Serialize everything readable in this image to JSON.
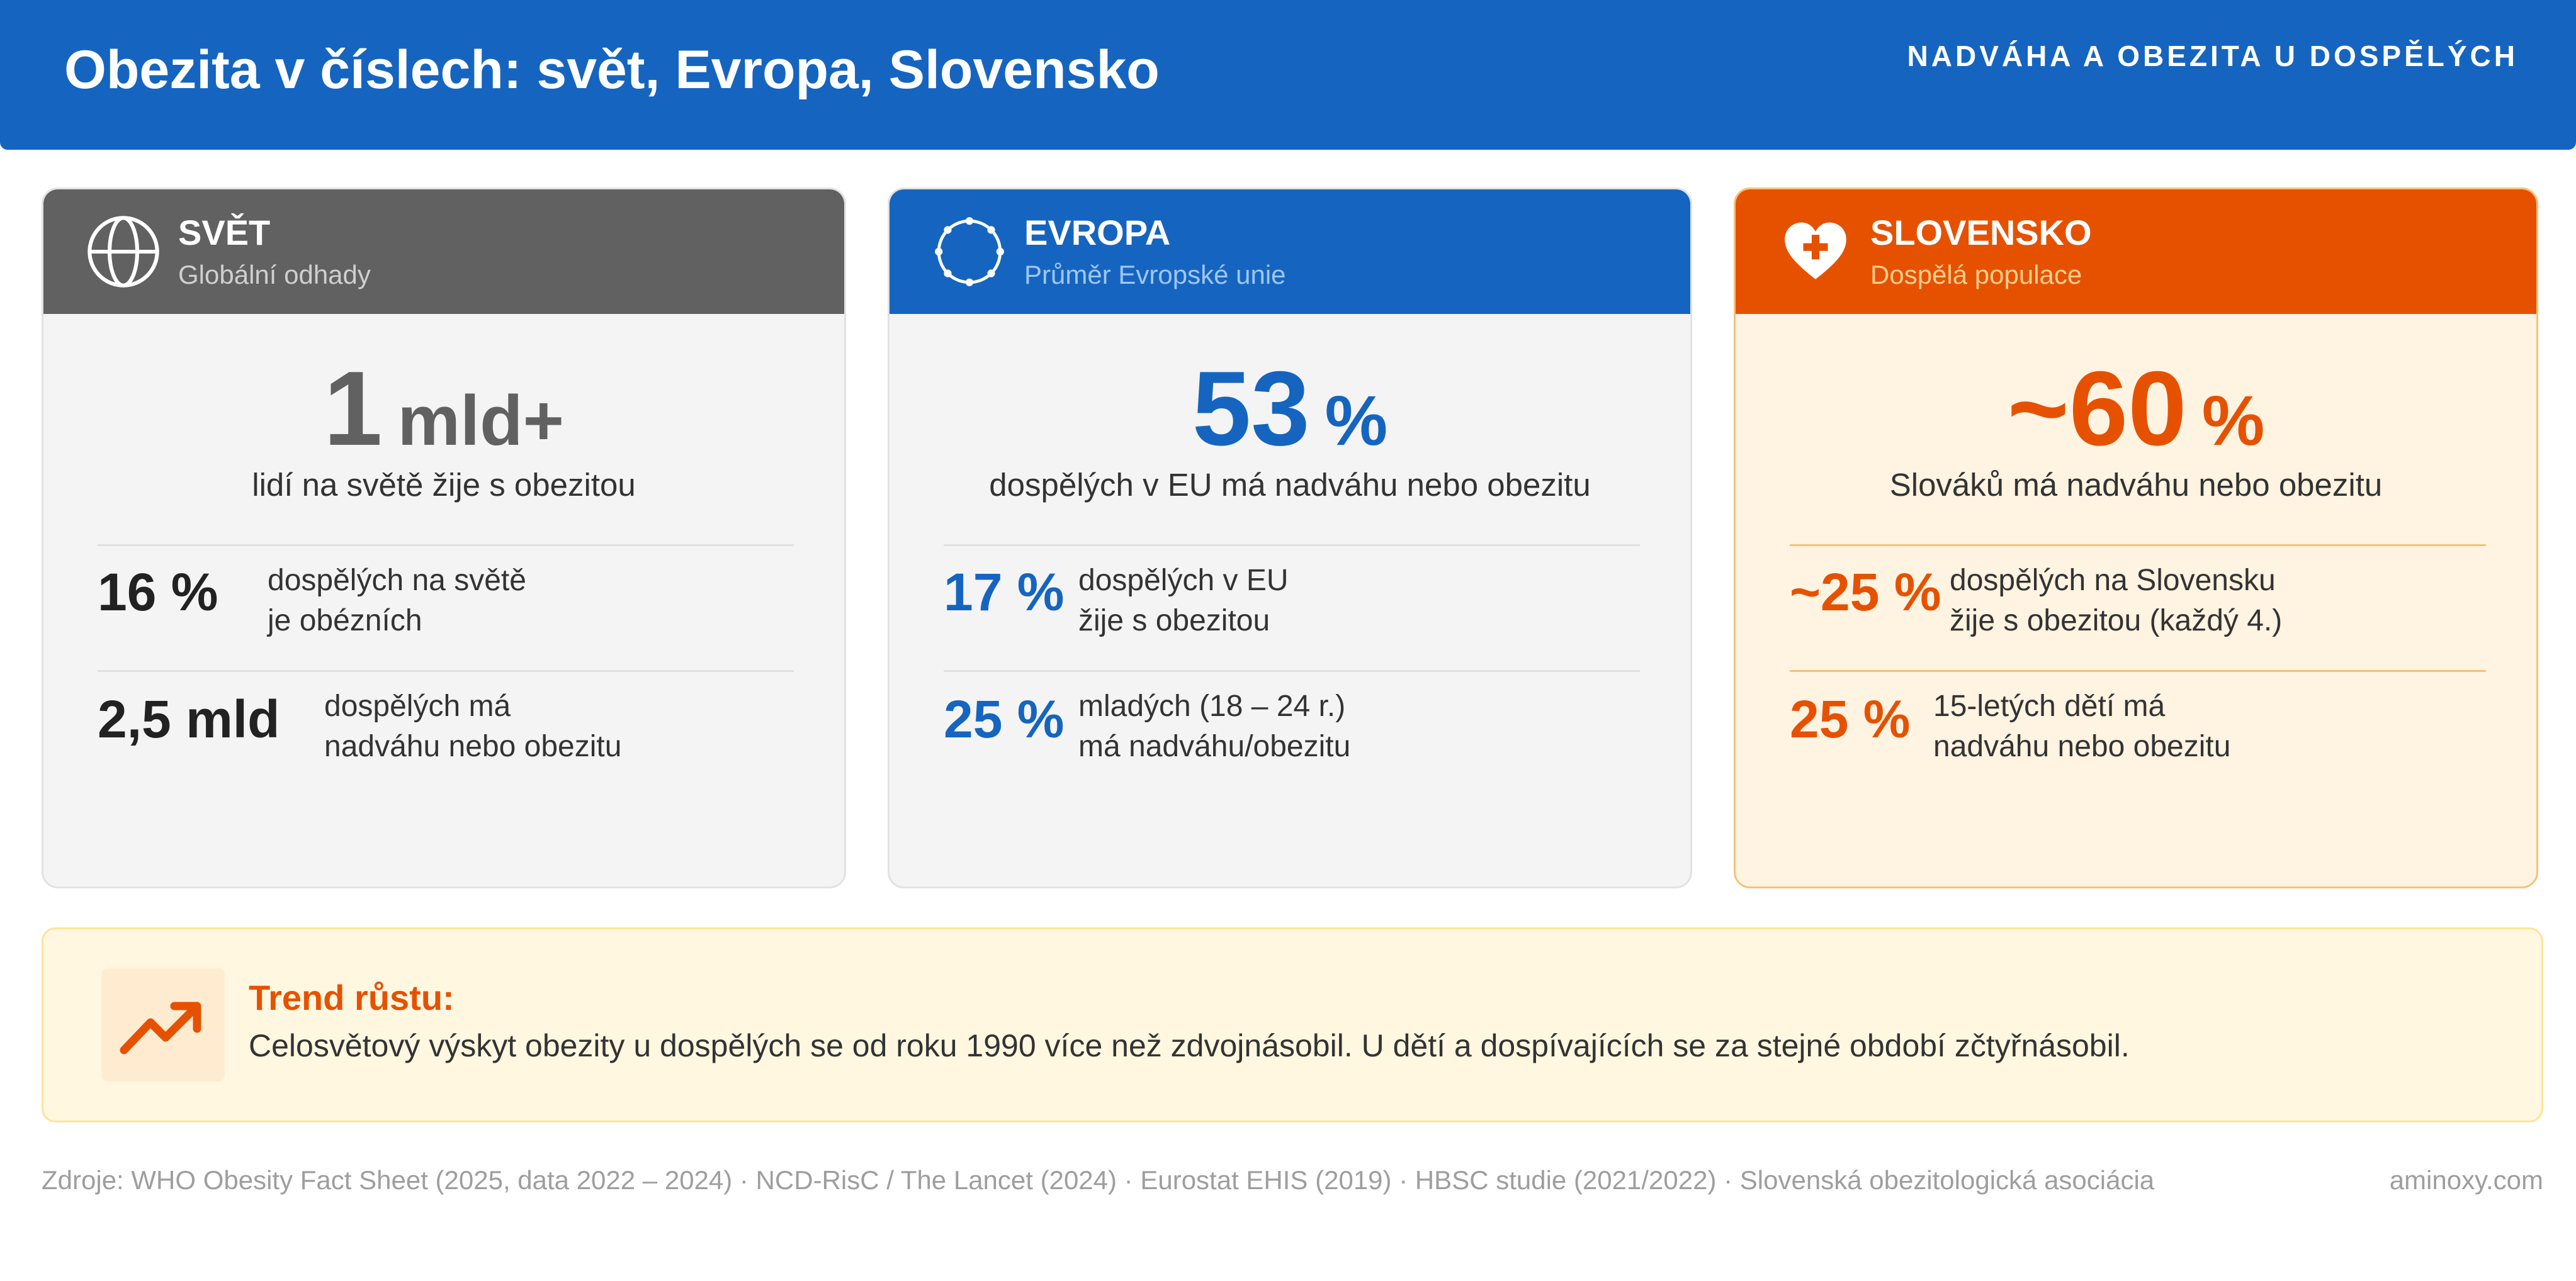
{
  "header": {
    "title": "Obezita v číslech: svět, Evropa, Slovensko",
    "subtitle": "NADVÁHA A OBEZITA U DOSPĚLÝCH"
  },
  "colors": {
    "header_blue": "#1565c0",
    "world_gray": "#616161",
    "europe_blue": "#1565c0",
    "slovakia_orange": "#e65100",
    "trend_bg": "#fff7e0"
  },
  "cards": {
    "world": {
      "icon": "globe-icon",
      "name": "SVĚT",
      "subtitle": "Globální odhady",
      "big_value": "1",
      "big_unit": "mld+",
      "big_caption": "lidí na světě žije s obezitou",
      "stats": [
        {
          "value": "16 %",
          "line1": "dospělých na světě",
          "line2": "je obézních"
        },
        {
          "value": "2,5 mld",
          "line1": "dospělých má",
          "line2": "nadváhu nebo obezitu"
        }
      ]
    },
    "europe": {
      "icon": "stars-circle-icon",
      "name": "EVROPA",
      "subtitle": "Průměr Evropské unie",
      "big_value": "53",
      "big_unit": "%",
      "big_caption": "dospělých v EU má nadváhu nebo obezitu",
      "stats": [
        {
          "value": "17 %",
          "line1": "dospělých v EU",
          "line2": "žije s obezitou"
        },
        {
          "value": "25 %",
          "line1": "mladých (18 – 24 r.)",
          "line2": "má nadváhu/obezitu"
        }
      ]
    },
    "slovakia": {
      "icon": "heart-plus-icon",
      "name": "SLOVENSKO",
      "subtitle": "Dospělá populace",
      "big_value": "~60",
      "big_unit": "%",
      "big_caption": "Slováků má nadváhu nebo obezitu",
      "stats": [
        {
          "value": "~25 %",
          "line1": "dospělých na Slovensku",
          "line2": "žije s obezitou (každý 4.)"
        },
        {
          "value": "25 %",
          "line1": "15-letých dětí má",
          "line2": "nadváhu nebo obezitu"
        }
      ]
    }
  },
  "trend": {
    "icon": "trending-up-icon",
    "title": "Trend růstu:",
    "text": "Celosvětový výskyt obezity u dospělých se od roku 1990 více než zdvojnásobil. U dětí a dospívajících se za stejné období zčtyřnásobil."
  },
  "footer": {
    "sources": "Zdroje: WHO Obesity Fact Sheet (2025, data 2022 – 2024) · NCD-RisC / The Lancet (2024) · Eurostat EHIS (2019) · HBSC studie (2021/2022) · Slovenská obezitologická asociácia",
    "site": "aminoxy.com"
  }
}
